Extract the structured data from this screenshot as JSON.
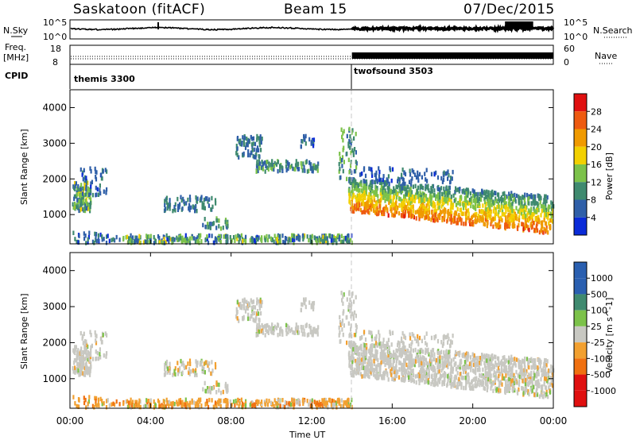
{
  "header": {
    "station": "Saskatoon (fitACF)",
    "beam": "Beam 15",
    "date": "07/Dec/2015"
  },
  "left_labels": {
    "nsky": "N.Sky",
    "freq": "Freq.",
    "freq_unit": "[MHz]",
    "cpid": "CPID"
  },
  "right_labels": {
    "nsearch": "N.Search",
    "nave": "Nave"
  },
  "noise_axis": {
    "left_ticks": [
      "10^5",
      "10^0"
    ],
    "right_ticks": [
      "10^5",
      "10^0"
    ]
  },
  "freq_axis": {
    "left_ticks": [
      "18",
      "8"
    ],
    "right_ticks": [
      "60",
      "0"
    ]
  },
  "cpid": {
    "modes": [
      {
        "name": "themis 3300",
        "start_hour": 0
      },
      {
        "name": "twofsound 3503",
        "start_hour": 14
      }
    ]
  },
  "x_axis": {
    "label": "Time UT",
    "ticks": [
      "00:00",
      "04:00",
      "08:00",
      "12:00",
      "16:00",
      "20:00",
      "00:00"
    ]
  },
  "power_panel": {
    "ylabel": "Slant Range [km]",
    "yticks": [
      "4000",
      "3000",
      "2000",
      "1000"
    ],
    "cbar_label": "Power [dB]",
    "cbar_ticks": [
      "28",
      "24",
      "20",
      "16",
      "12",
      "8",
      "4"
    ],
    "colors": {
      "c4": "#0a2bd8",
      "c8": "#2f5fa8",
      "c12": "#3f8a6f",
      "c16": "#7cc24a",
      "c20": "#f2d000",
      "c24": "#f09a00",
      "c28": "#ee5a10",
      "cmax": "#e01010"
    }
  },
  "velocity_panel": {
    "ylabel": "Slant Range [km]",
    "yticks": [
      "4000",
      "3000",
      "2000",
      "1000"
    ],
    "cbar_label": "Velocity [m s^-1]",
    "cbar_ticks": [
      "1000",
      "500",
      "100",
      "25",
      "-25",
      "-100",
      "-500",
      "-1000"
    ],
    "colors": {
      "pos_high": "#2a5fb0",
      "pos_mid": "#3f8a6f",
      "pos_low": "#7cc24a",
      "ground": "#c8c8c2",
      "neg_low": "#f2a030",
      "neg_mid": "#f07010",
      "neg_high": "#e01010"
    }
  },
  "chart_data": {
    "type": "heatmap",
    "title": "Saskatoon (fitACF) Beam 15 07/Dec/2015",
    "xlabel": "Time UT",
    "ylabel": "Slant Range [km]",
    "xlim_hours": [
      0,
      24
    ],
    "ylim_km": [
      180,
      4500
    ],
    "power_range_db": [
      0,
      30
    ],
    "velocity_range_ms": [
      -1000,
      1000
    ],
    "regions": [
      {
        "name": "early-mid-range",
        "t": [
          0,
          1.8
        ],
        "r": [
          1000,
          2300
        ],
        "power_db": 10,
        "velocity": "ground"
      },
      {
        "name": "low-range-echoes",
        "t": [
          2.6,
          14
        ],
        "r": [
          200,
          450
        ],
        "power_db": 14,
        "velocity": "negative-low"
      },
      {
        "name": "patch-5-7h",
        "t": [
          4.5,
          7.2
        ],
        "r": [
          1100,
          1500
        ],
        "power_db": 10,
        "velocity": "mixed"
      },
      {
        "name": "patch-8-12h",
        "t": [
          8.2,
          12.3
        ],
        "r": [
          2200,
          3200
        ],
        "power_db": 12,
        "velocity": "ground"
      },
      {
        "name": "post-14h-band",
        "t": [
          13.8,
          24
        ],
        "r": [
          600,
          2300
        ],
        "power_db": 24,
        "velocity": "ground"
      }
    ]
  }
}
